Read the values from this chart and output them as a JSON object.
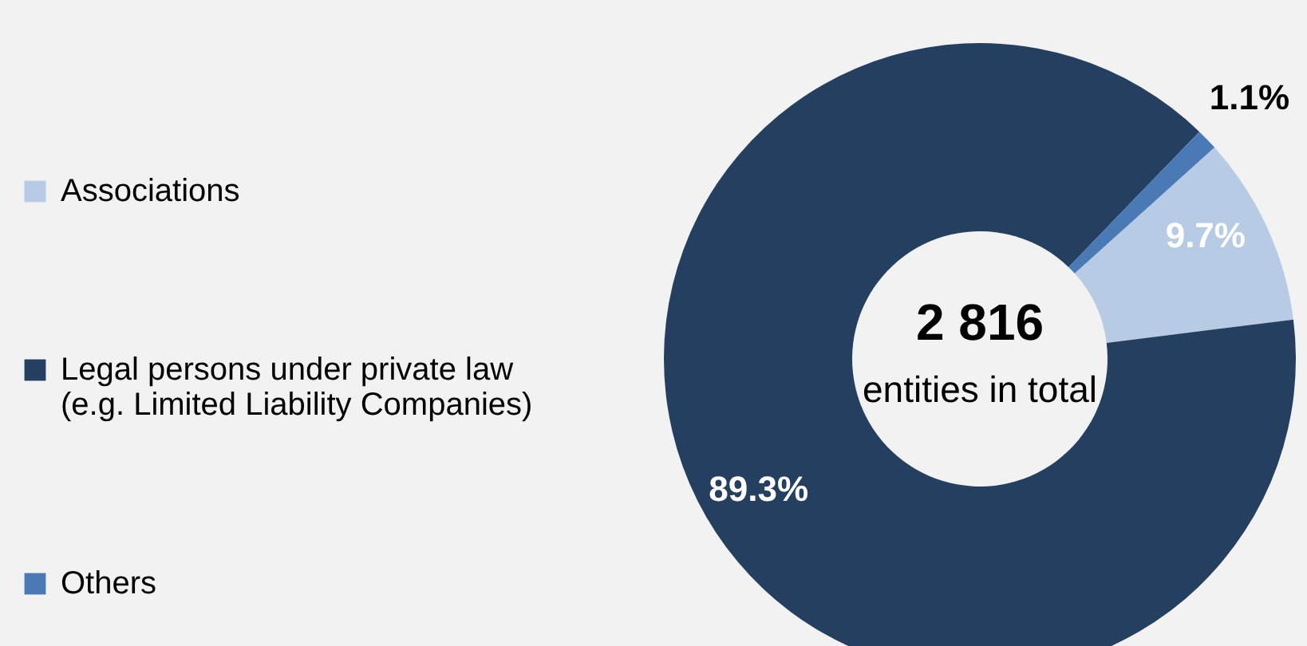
{
  "chart_data": {
    "type": "donut",
    "categories": [
      "Associations",
      "Legal persons under private law (e.g. Limited Liability Companies)",
      "Others"
    ],
    "values": [
      9.7,
      89.3,
      1.1
    ],
    "colors": [
      "#b7cbe5",
      "#243f60",
      "#4a7ab5"
    ],
    "value_labels": [
      "9.7%",
      "89.3%",
      "1.1%"
    ],
    "annotations": [
      "2 816",
      "entities in total"
    ],
    "legend": "left"
  }
}
